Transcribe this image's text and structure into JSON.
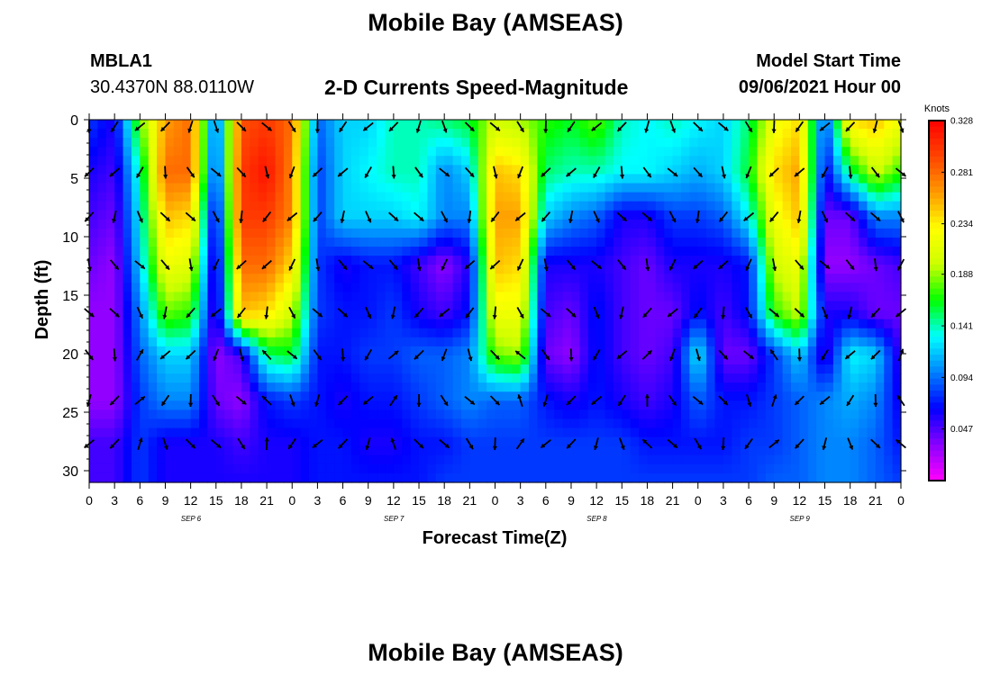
{
  "page": {
    "title": "Mobile Bay (AMSEAS)",
    "footer_title": "Mobile Bay (AMSEAS)"
  },
  "station": {
    "id": "MBLA1",
    "coords": "30.4370N  88.0110W"
  },
  "model": {
    "label": "Model Start Time",
    "time": "09/06/2021 Hour 00"
  },
  "chart_data": {
    "type": "heatmap",
    "subtitle": "2-D Currents Speed-Magnitude",
    "xlabel": "Forecast Time(Z)",
    "ylabel": "Depth (ft)",
    "ylim": [
      31,
      0
    ],
    "y_ticks": [
      0,
      5,
      10,
      15,
      20,
      25,
      30
    ],
    "x_tick_labels": [
      "0",
      "3",
      "6",
      "9",
      "12",
      "15",
      "18",
      "21",
      "0",
      "3",
      "6",
      "9",
      "12",
      "15",
      "18",
      "21",
      "0",
      "3",
      "6",
      "9",
      "12",
      "15",
      "18",
      "21",
      "0",
      "3",
      "6",
      "9",
      "12",
      "15",
      "18",
      "21",
      "0"
    ],
    "day_labels": [
      "SEP 6",
      "SEP 7",
      "SEP 8",
      "SEP 9"
    ],
    "colorbar": {
      "unit": "Knots",
      "ticks": [
        0.328,
        0.281,
        0.234,
        0.188,
        0.141,
        0.094,
        0.047
      ],
      "colors": [
        "#ff00ff",
        "#8800ff",
        "#0000ff",
        "#0080ff",
        "#00ffff",
        "#00ff00",
        "#ccff00",
        "#ffff00",
        "#ff9900",
        "#ff4400",
        "#ff0000"
      ]
    },
    "depth_levels": [
      0,
      4.5,
      8.3,
      12.4,
      16.5,
      20.1,
      24,
      27.7,
      31
    ],
    "hours": [
      0,
      3,
      6,
      9,
      12,
      15,
      18,
      21,
      24,
      27,
      30,
      33,
      36,
      39,
      42,
      45,
      48,
      51,
      54,
      57,
      60,
      63,
      66,
      69,
      72,
      75,
      78,
      81,
      84,
      87,
      90,
      93,
      96
    ],
    "speed": [
      [
        0.08,
        0.06,
        0.18,
        0.26,
        0.28,
        0.08,
        0.29,
        0.3,
        0.28,
        0.09,
        0.12,
        0.12,
        0.14,
        0.14,
        0.15,
        0.16,
        0.2,
        0.19,
        0.17,
        0.16,
        0.18,
        0.14,
        0.13,
        0.14,
        0.13,
        0.12,
        0.15,
        0.22,
        0.24,
        0.08,
        0.24,
        0.25,
        0.22
      ],
      [
        0.06,
        0.05,
        0.14,
        0.28,
        0.28,
        0.07,
        0.3,
        0.32,
        0.27,
        0.08,
        0.12,
        0.13,
        0.14,
        0.14,
        0.1,
        0.12,
        0.25,
        0.24,
        0.15,
        0.14,
        0.14,
        0.13,
        0.13,
        0.12,
        0.11,
        0.12,
        0.16,
        0.24,
        0.26,
        0.06,
        0.15,
        0.2,
        0.17
      ],
      [
        0.05,
        0.04,
        0.13,
        0.25,
        0.24,
        0.05,
        0.3,
        0.3,
        0.27,
        0.08,
        0.12,
        0.12,
        0.12,
        0.13,
        0.1,
        0.1,
        0.26,
        0.26,
        0.12,
        0.1,
        0.09,
        0.06,
        0.06,
        0.08,
        0.08,
        0.09,
        0.13,
        0.22,
        0.25,
        0.04,
        0.04,
        0.1,
        0.1
      ],
      [
        0.04,
        0.03,
        0.12,
        0.22,
        0.21,
        0.04,
        0.28,
        0.28,
        0.24,
        0.08,
        0.06,
        0.07,
        0.07,
        0.05,
        0.03,
        0.06,
        0.25,
        0.24,
        0.06,
        0.06,
        0.06,
        0.05,
        0.04,
        0.06,
        0.06,
        0.06,
        0.07,
        0.2,
        0.22,
        0.03,
        0.03,
        0.04,
        0.05
      ],
      [
        0.03,
        0.03,
        0.1,
        0.18,
        0.17,
        0.04,
        0.25,
        0.24,
        0.2,
        0.08,
        0.07,
        0.07,
        0.08,
        0.06,
        0.05,
        0.07,
        0.22,
        0.22,
        0.05,
        0.04,
        0.07,
        0.05,
        0.04,
        0.04,
        0.07,
        0.05,
        0.07,
        0.17,
        0.2,
        0.06,
        0.06,
        0.04,
        0.04
      ],
      [
        0.03,
        0.03,
        0.09,
        0.12,
        0.12,
        0.03,
        0.05,
        0.15,
        0.16,
        0.07,
        0.07,
        0.08,
        0.08,
        0.09,
        0.09,
        0.1,
        0.18,
        0.19,
        0.04,
        0.03,
        0.07,
        0.05,
        0.04,
        0.05,
        0.13,
        0.04,
        0.04,
        0.08,
        0.12,
        0.05,
        0.13,
        0.12,
        0.05
      ],
      [
        0.03,
        0.03,
        0.08,
        0.1,
        0.1,
        0.04,
        0.03,
        0.07,
        0.08,
        0.07,
        0.06,
        0.07,
        0.07,
        0.08,
        0.09,
        0.1,
        0.09,
        0.09,
        0.07,
        0.06,
        0.07,
        0.06,
        0.05,
        0.06,
        0.09,
        0.07,
        0.07,
        0.08,
        0.09,
        0.1,
        0.11,
        0.1,
        0.06
      ],
      [
        0.05,
        0.05,
        0.08,
        0.06,
        0.06,
        0.06,
        0.05,
        0.06,
        0.06,
        0.07,
        0.07,
        0.06,
        0.06,
        0.07,
        0.07,
        0.08,
        0.08,
        0.08,
        0.08,
        0.08,
        0.08,
        0.08,
        0.07,
        0.07,
        0.07,
        0.07,
        0.08,
        0.08,
        0.09,
        0.1,
        0.1,
        0.09,
        0.07
      ],
      [
        0.05,
        0.05,
        0.08,
        0.06,
        0.06,
        0.06,
        0.06,
        0.06,
        0.06,
        0.07,
        0.07,
        0.07,
        0.07,
        0.07,
        0.08,
        0.08,
        0.08,
        0.08,
        0.08,
        0.08,
        0.08,
        0.08,
        0.08,
        0.08,
        0.08,
        0.08,
        0.08,
        0.09,
        0.09,
        0.1,
        0.1,
        0.09,
        0.08
      ]
    ]
  }
}
